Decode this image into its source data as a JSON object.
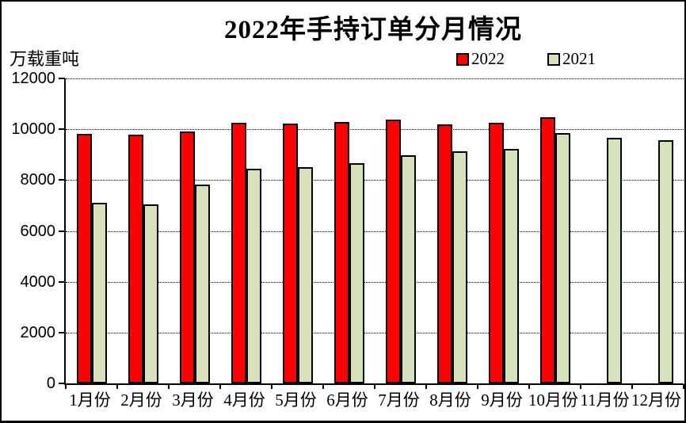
{
  "chart_data": {
    "type": "bar",
    "title": "2022年手持订单分月情况",
    "ylabel": "万载重吨",
    "xlabel": "",
    "categories": [
      "1月份",
      "2月份",
      "3月份",
      "4月份",
      "5月份",
      "6月份",
      "7月份",
      "8月份",
      "9月份",
      "10月份",
      "11月份",
      "12月份"
    ],
    "series": [
      {
        "name": "2022",
        "color": "#FF0000",
        "values": [
          9816,
          9798,
          9916,
          10247,
          10238,
          10274,
          10366,
          10206,
          10265,
          10474,
          null,
          null
        ]
      },
      {
        "name": "2021",
        "color": "#D7E2BC",
        "values": [
          7111,
          7049,
          7825,
          8439,
          8495,
          8660,
          8967,
          9147,
          9240,
          9839,
          9648,
          9584
        ]
      }
    ],
    "ylim": [
      0,
      12000
    ],
    "yticks": [
      0,
      2000,
      4000,
      6000,
      8000,
      10000,
      12000
    ],
    "grid": "horizontal-dotted",
    "legend_position": "top-right",
    "bar_border_color": "#000000",
    "frame_border_color": "#000000",
    "background_color": "#FFFFFF"
  }
}
